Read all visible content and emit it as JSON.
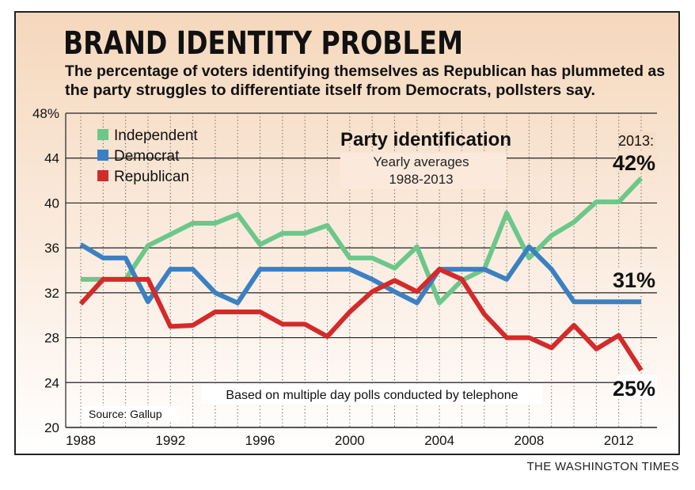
{
  "header": {
    "title": "BRAND IDENTITY PROBLEM",
    "subtitle_line1": "The percentage of voters identifying themselves as Republican has plummeted as",
    "subtitle_line2": "the party struggles to differentiate itself from Democrats, pollsters say."
  },
  "chart_data": {
    "type": "line",
    "title": "Party identification",
    "subtitle_line1": "Yearly averages",
    "subtitle_line2": "1988-2013",
    "xlabel": "",
    "ylabel": "",
    "xlim": [
      1988,
      2013
    ],
    "ylim": [
      20,
      48
    ],
    "yticks": [
      "20",
      "24",
      "28",
      "32",
      "36",
      "40",
      "44",
      "48%"
    ],
    "xticks": [
      "1988",
      "1992",
      "1996",
      "2000",
      "2004",
      "2008",
      "2012"
    ],
    "x": [
      1988,
      1989,
      1990,
      1991,
      1992,
      1993,
      1994,
      1995,
      1996,
      1997,
      1998,
      1999,
      2000,
      2001,
      2002,
      2003,
      2004,
      2005,
      2006,
      2007,
      2008,
      2009,
      2010,
      2011,
      2012,
      2013
    ],
    "series": [
      {
        "name": "Independent",
        "color": "#6cc78a",
        "values": [
          33.2,
          33.2,
          33.2,
          36.2,
          37.2,
          38.2,
          38.2,
          39.0,
          36.3,
          37.3,
          37.3,
          38.0,
          35.1,
          35.1,
          34.2,
          36.1,
          31.1,
          33.1,
          34.1,
          39.1,
          35.1,
          37.1,
          38.3,
          40.1,
          40.1,
          42.2
        ]
      },
      {
        "name": "Democrat",
        "color": "#3b80c2",
        "values": [
          36.3,
          35.1,
          35.1,
          31.2,
          34.1,
          34.1,
          32.0,
          31.1,
          34.1,
          34.1,
          34.1,
          34.1,
          34.1,
          33.2,
          32.1,
          31.1,
          34.1,
          34.1,
          34.1,
          33.2,
          36.1,
          34.1,
          31.2,
          31.2,
          31.2,
          31.2
        ]
      },
      {
        "name": "Republican",
        "color": "#d42a2a",
        "values": [
          31.0,
          33.2,
          33.2,
          33.2,
          29.0,
          29.1,
          30.3,
          30.3,
          30.3,
          29.2,
          29.2,
          28.1,
          30.3,
          32.1,
          33.1,
          32.1,
          34.1,
          33.2,
          30.1,
          28.0,
          28.0,
          27.1,
          29.1,
          27.0,
          28.2,
          25.1
        ]
      }
    ],
    "legend": [
      "Independent",
      "Democrat",
      "Republican"
    ],
    "legend_position": "top-left",
    "annotations": {
      "year_label": "2013:",
      "independent_end": "42%",
      "democrat_end": "31%",
      "republican_end": "25%",
      "note": "Based on multiple day polls conducted by telephone",
      "source": "Source: Gallup"
    },
    "grid": true
  },
  "credit": "THE WASHINGTON TIMES",
  "colors": {
    "background_top": "#f6dcc3",
    "background_bottom": "#ffffff",
    "grid": "#222222"
  }
}
